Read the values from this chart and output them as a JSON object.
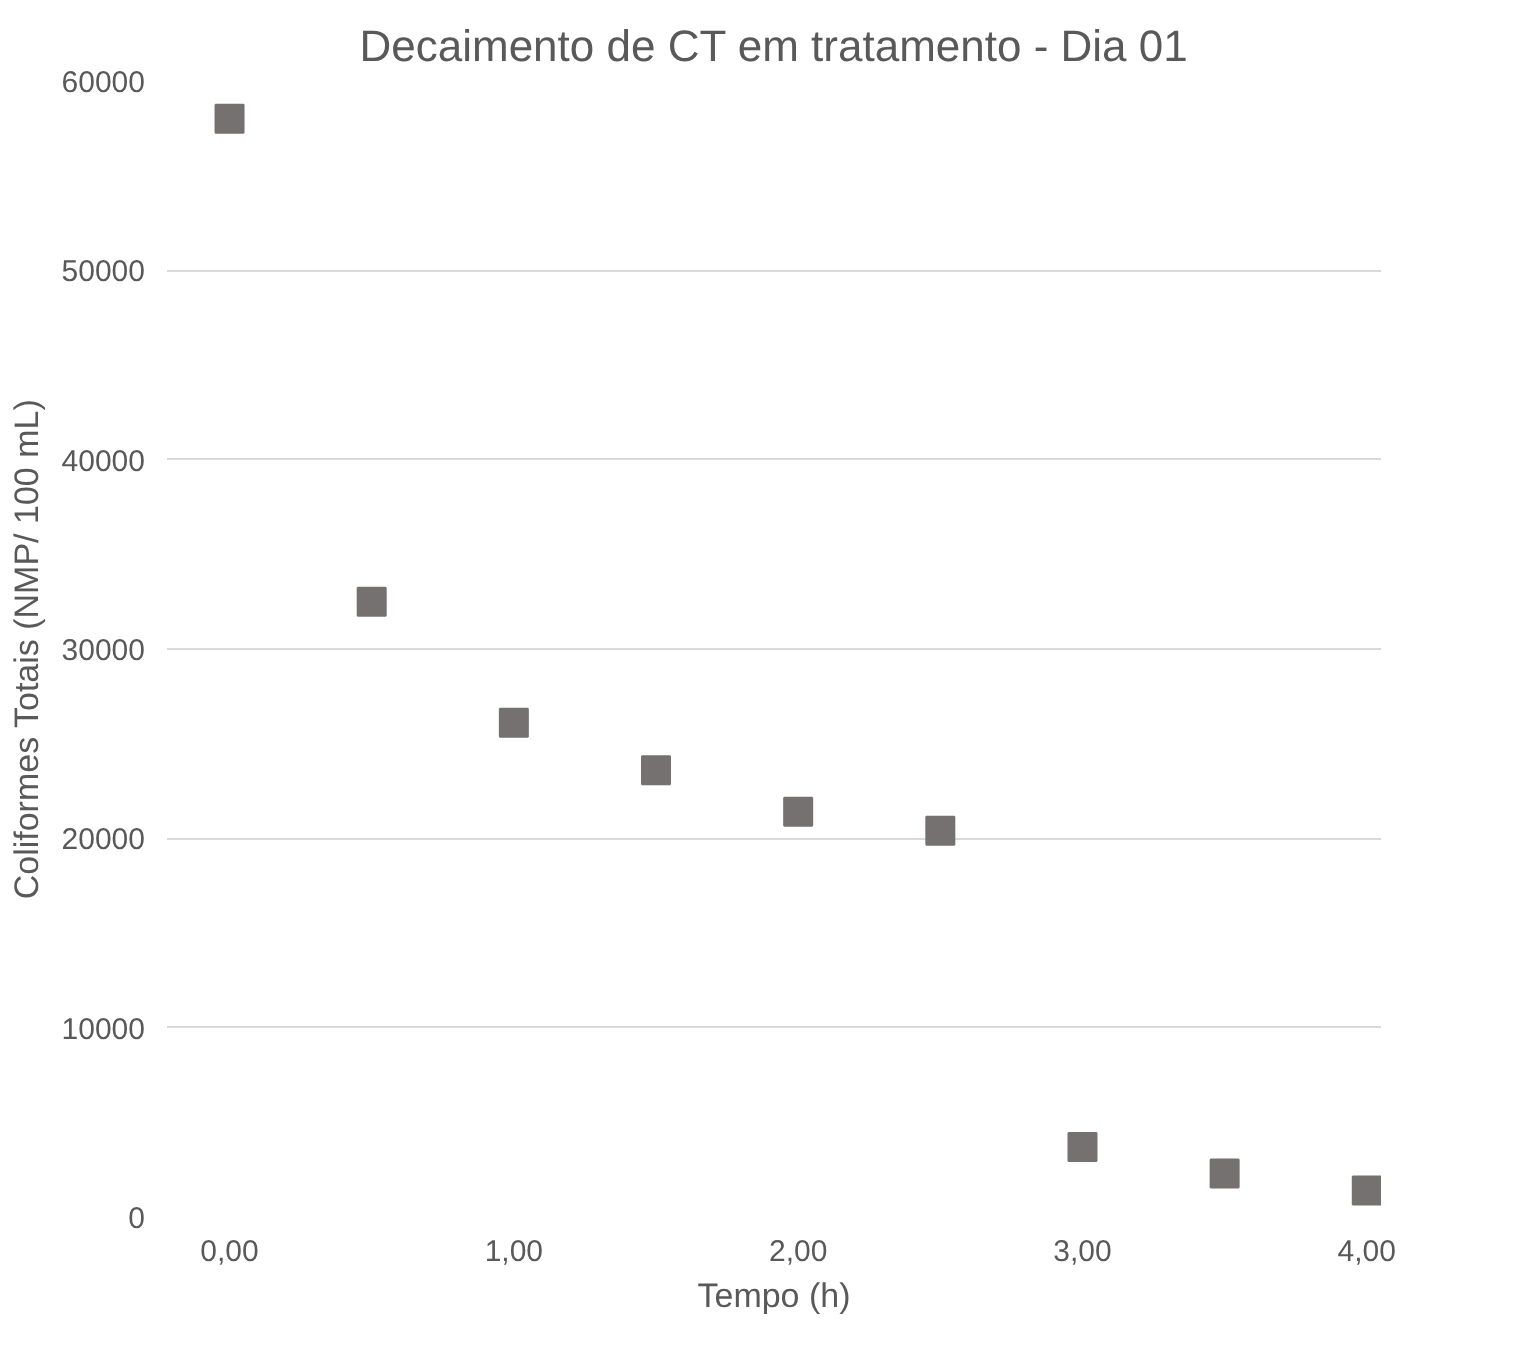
{
  "chart_data": {
    "type": "scatter",
    "title": "Decaimento de CT em tratamento - Dia 01",
    "xlabel": "Tempo (h)",
    "ylabel": "Coliformes Totais (NMP/ 100 mL)",
    "x": [
      0,
      0.5,
      1,
      1.5,
      2,
      2.5,
      3,
      3.5,
      4
    ],
    "series": [
      {
        "color": "#767171",
        "values": [
          58000,
          32500,
          26100,
          23600,
          21400,
          20400,
          3700,
          2300,
          1400
        ]
      }
    ],
    "xlim": [
      -0.22,
      4.05
    ],
    "ylim": [
      0,
      60000
    ],
    "xticks": [
      {
        "value": 0,
        "label": "0,00"
      },
      {
        "value": 1,
        "label": "1,00"
      },
      {
        "value": 2,
        "label": "2,00"
      },
      {
        "value": 3,
        "label": "3,00"
      },
      {
        "value": 4,
        "label": "4,00"
      }
    ],
    "yticks": [
      0,
      10000,
      20000,
      30000,
      40000,
      50000,
      60000
    ],
    "grid": "y",
    "marker": "square"
  }
}
